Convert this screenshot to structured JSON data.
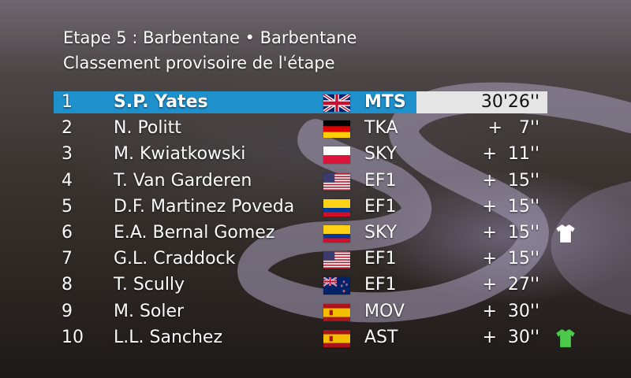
{
  "header": {
    "line1": "Etape 5 : Barbentane • Barbentane",
    "line2": "Classement provisoire de l'étape"
  },
  "colors": {
    "leader_row": "#1e90cc",
    "time_box": "#e5e5e5",
    "jersey_white": "#ffffff",
    "jersey_green": "#4cc94a"
  },
  "rows": [
    {
      "pos": "1",
      "name": "S.P. Yates",
      "flag": "gb-flag-icon",
      "team": "MTS",
      "time": "30'26''"
    },
    {
      "pos": "2",
      "name": "N. Politt",
      "flag": "de-flag-icon",
      "team": "TKA",
      "time": "+   7''"
    },
    {
      "pos": "3",
      "name": "M. Kwiatkowski",
      "flag": "pl-flag-icon",
      "team": "SKY",
      "time": "+  11''"
    },
    {
      "pos": "4",
      "name": "T. Van Garderen",
      "flag": "us-flag-icon",
      "team": "EF1",
      "time": "+  15''"
    },
    {
      "pos": "5",
      "name": "D.F. Martinez Poveda",
      "flag": "co-flag-icon",
      "team": "EF1",
      "time": "+  15''"
    },
    {
      "pos": "6",
      "name": "E.A. Bernal Gomez",
      "flag": "co-flag-icon",
      "team": "SKY",
      "time": "+  15''",
      "jersey": "white-jersey-icon"
    },
    {
      "pos": "7",
      "name": "G.L. Craddock",
      "flag": "us-flag-icon",
      "team": "EF1",
      "time": "+  15''"
    },
    {
      "pos": "8",
      "name": "T. Scully",
      "flag": "nz-flag-icon",
      "team": "EF1",
      "time": "+  27''"
    },
    {
      "pos": "9",
      "name": "M. Soler",
      "flag": "es-flag-icon",
      "team": "MOV",
      "time": "+  30''"
    },
    {
      "pos": "10",
      "name": "L.L. Sanchez",
      "flag": "es-flag-icon",
      "team": "AST",
      "time": "+  30''",
      "jersey": "green-jersey-icon"
    }
  ]
}
